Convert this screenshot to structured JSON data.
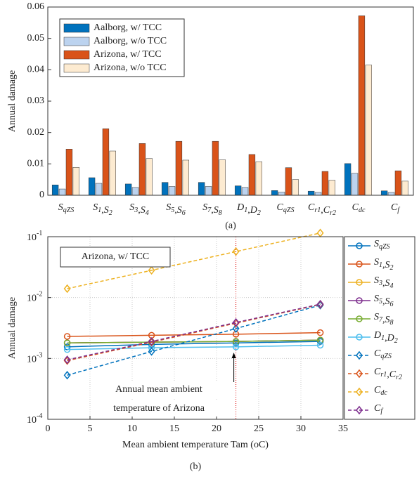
{
  "chart_data": [
    {
      "type": "bar",
      "caption": "(a)",
      "ylabel": "Annual damage",
      "categories": [
        "SqZS",
        "S1,S2",
        "S3,S4",
        "S5,S6",
        "S7,S8",
        "D1,D2",
        "CqZS",
        "Cr1,Cr2",
        "Cdc",
        "Cf"
      ],
      "series": [
        {
          "name": "Aalborg, w/ TCC",
          "color": "#0072bd",
          "values": [
            0.0033,
            0.0056,
            0.0036,
            0.0041,
            0.0041,
            0.003,
            0.0015,
            0.0013,
            0.0101,
            0.0014
          ]
        },
        {
          "name": "Aalborg, w/o TCC",
          "color": "#bcd3ef",
          "values": [
            0.002,
            0.0038,
            0.0025,
            0.0028,
            0.0028,
            0.0025,
            0.001,
            0.0009,
            0.007,
            0.0009
          ]
        },
        {
          "name": "Arizona, w/ TCC",
          "color": "#d95319",
          "values": [
            0.0147,
            0.0212,
            0.0165,
            0.0172,
            0.0172,
            0.013,
            0.0088,
            0.0076,
            0.0572,
            0.0078
          ]
        },
        {
          "name": "Arizona, w/o TCC",
          "color": "#fdebd1",
          "values": [
            0.0089,
            0.0141,
            0.0117,
            0.0112,
            0.0113,
            0.0107,
            0.005,
            0.0048,
            0.0415,
            0.0045
          ]
        }
      ],
      "ylim": [
        0,
        0.06
      ],
      "yticks": [
        0,
        0.01,
        0.02,
        0.03,
        0.04,
        0.05,
        0.06
      ],
      "legend": "upper-left"
    },
    {
      "type": "line",
      "caption": "(b)",
      "ylabel": "Annual damage",
      "xlabel": "Mean ambient temperature Tam (oC)",
      "label_box": "Arizona, w/ TCC",
      "annotation": [
        "Annual mean ambient",
        "temperature of Arizona"
      ],
      "vline_x": 22.3,
      "x": [
        2.3,
        12.3,
        22.3,
        32.3
      ],
      "log_y": true,
      "grid": true,
      "legend": "outside-right",
      "series": [
        {
          "name": "SqZS",
          "color": "#0072bd",
          "linestyle": "solid",
          "marker": "circle",
          "values": [
            0.00155,
            0.0017,
            0.0018,
            0.0019
          ]
        },
        {
          "name": "S1,S2",
          "color": "#d95319",
          "linestyle": "solid",
          "marker": "circle",
          "values": [
            0.0023,
            0.0024,
            0.0025,
            0.00265
          ]
        },
        {
          "name": "S3,S4",
          "color": "#edb120",
          "linestyle": "solid",
          "marker": "circle",
          "values": [
            0.0018,
            0.00185,
            0.0019,
            0.002
          ]
        },
        {
          "name": "S5,S6",
          "color": "#7e2f8e",
          "linestyle": "solid",
          "marker": "circle",
          "values": [
            0.0018,
            0.00185,
            0.0019,
            0.002
          ]
        },
        {
          "name": "S7,S8",
          "color": "#77ac30",
          "linestyle": "solid",
          "marker": "circle",
          "values": [
            0.0018,
            0.00185,
            0.0019,
            0.002
          ]
        },
        {
          "name": "D1,D2",
          "color": "#4dbeee",
          "linestyle": "solid",
          "marker": "circle",
          "values": [
            0.0014,
            0.0015,
            0.00155,
            0.00165
          ]
        },
        {
          "name": "CqZS",
          "color": "#0072bd",
          "linestyle": "dashed",
          "marker": "diamond",
          "values": [
            0.00053,
            0.0013,
            0.0031,
            0.0075
          ]
        },
        {
          "name": "Cr1,Cr2",
          "color": "#d95319",
          "linestyle": "dashed",
          "marker": "diamond",
          "values": [
            0.00092,
            0.00185,
            0.0038,
            0.0077
          ]
        },
        {
          "name": "Cdc",
          "color": "#edb120",
          "linestyle": "dashed",
          "marker": "diamond",
          "values": [
            0.014,
            0.028,
            0.057,
            0.115
          ]
        },
        {
          "name": "Cf",
          "color": "#7e2f8e",
          "linestyle": "dashed",
          "marker": "diamond",
          "values": [
            0.00095,
            0.0019,
            0.0039,
            0.0078
          ]
        }
      ],
      "xlim": [
        0,
        35
      ],
      "xticks": [
        0,
        5,
        10,
        15,
        20,
        25,
        30,
        35
      ],
      "ylim": [
        0.0001,
        0.1
      ],
      "yticks": [
        {
          "value": 0.0001,
          "label": "10-4"
        },
        {
          "value": 0.001,
          "label": "10-3"
        },
        {
          "value": 0.01,
          "label": "10-2"
        },
        {
          "value": 0.1,
          "label": "10-1"
        }
      ]
    }
  ]
}
